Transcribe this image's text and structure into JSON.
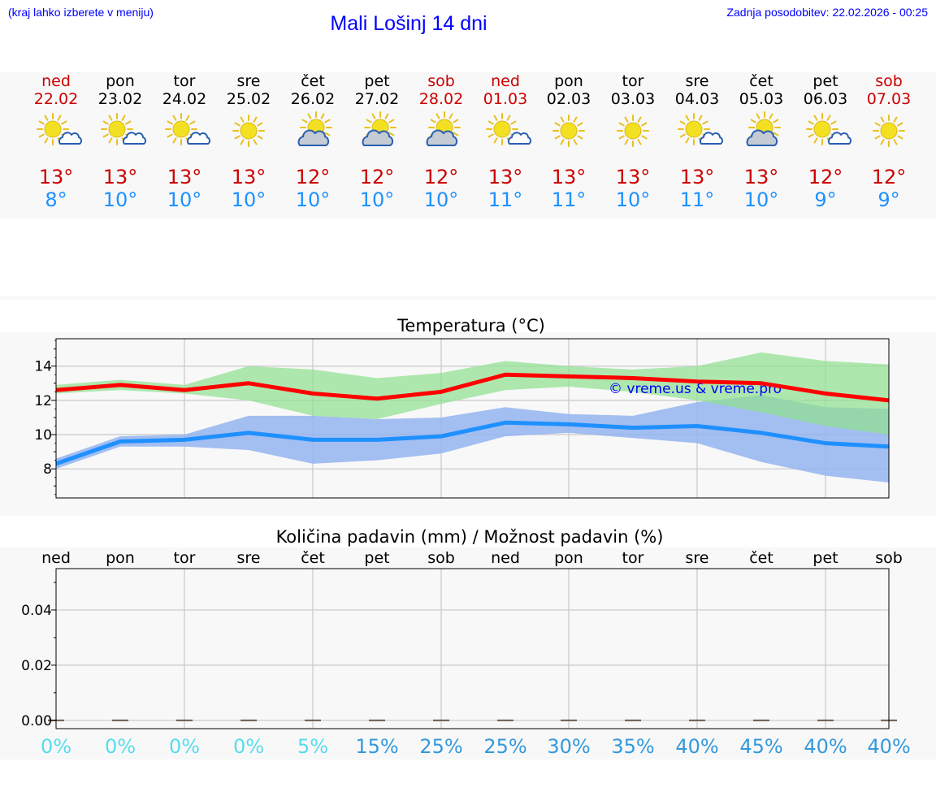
{
  "header": {
    "note": "(kraj lahko izberete v meniju)",
    "title": "Mali Lošinj 14 dni",
    "updated": "Zadnja posodobitev: 22.02.2026 - 00:25"
  },
  "days": [
    {
      "name": "ned",
      "date": "22.02",
      "weekend": true,
      "icon": "sun-cloud-icon",
      "tmax": "13°",
      "tmin": "8°"
    },
    {
      "name": "pon",
      "date": "23.02",
      "weekend": false,
      "icon": "sun-cloud-icon",
      "tmax": "13°",
      "tmin": "10°"
    },
    {
      "name": "tor",
      "date": "24.02",
      "weekend": false,
      "icon": "sun-cloud-icon",
      "tmax": "13°",
      "tmin": "10°"
    },
    {
      "name": "sre",
      "date": "25.02",
      "weekend": false,
      "icon": "sun-icon",
      "tmax": "13°",
      "tmin": "10°"
    },
    {
      "name": "čet",
      "date": "26.02",
      "weekend": false,
      "icon": "cloud-sun-icon",
      "tmax": "12°",
      "tmin": "10°"
    },
    {
      "name": "pet",
      "date": "27.02",
      "weekend": false,
      "icon": "cloud-sun-icon",
      "tmax": "12°",
      "tmin": "10°"
    },
    {
      "name": "sob",
      "date": "28.02",
      "weekend": true,
      "icon": "cloud-sun-icon",
      "tmax": "12°",
      "tmin": "10°"
    },
    {
      "name": "ned",
      "date": "01.03",
      "weekend": true,
      "icon": "sun-cloud-icon",
      "tmax": "13°",
      "tmin": "11°"
    },
    {
      "name": "pon",
      "date": "02.03",
      "weekend": false,
      "icon": "sun-icon",
      "tmax": "13°",
      "tmin": "11°"
    },
    {
      "name": "tor",
      "date": "03.03",
      "weekend": false,
      "icon": "sun-icon",
      "tmax": "13°",
      "tmin": "10°"
    },
    {
      "name": "sre",
      "date": "04.03",
      "weekend": false,
      "icon": "sun-cloud-icon",
      "tmax": "13°",
      "tmin": "11°"
    },
    {
      "name": "čet",
      "date": "05.03",
      "weekend": false,
      "icon": "cloud-sun-icon",
      "tmax": "13°",
      "tmin": "10°"
    },
    {
      "name": "pet",
      "date": "06.03",
      "weekend": false,
      "icon": "sun-cloud-icon",
      "tmax": "12°",
      "tmin": "9°"
    },
    {
      "name": "sob",
      "date": "07.03",
      "weekend": true,
      "icon": "sun-icon",
      "tmax": "12°",
      "tmin": "9°"
    }
  ],
  "colors": {
    "weekend": "#cc0000",
    "tmax_line": "#ff0000",
    "tmin_line": "#1e90ff",
    "tmax_band": "#90e090",
    "tmin_band": "#94b4f0",
    "overlap_band": "#70c0a0",
    "prob_low": "#55ddee",
    "prob_high": "#3399dd",
    "watermark": "#0000ff"
  },
  "chart_data": [
    {
      "type": "line",
      "title": "Temperatura (°C)",
      "xlabel": "",
      "ylabel": "",
      "x": [
        0,
        1,
        2,
        3,
        4,
        5,
        6,
        7,
        8,
        9,
        10,
        11,
        12,
        13
      ],
      "ylim": [
        6.3,
        15.6
      ],
      "yticks": [
        8,
        10,
        12,
        14
      ],
      "grid": true,
      "watermark": "© vreme.us & vreme.pro",
      "series": [
        {
          "name": "max",
          "values": [
            12.6,
            12.9,
            12.6,
            13.0,
            12.4,
            12.1,
            12.5,
            13.5,
            13.4,
            13.3,
            13.1,
            13.0,
            12.4,
            12.0
          ]
        },
        {
          "name": "max_range_low",
          "values": [
            12.4,
            12.6,
            12.4,
            12.0,
            11.1,
            10.9,
            11.8,
            12.6,
            12.8,
            12.5,
            12.0,
            11.3,
            10.5,
            10.0
          ]
        },
        {
          "name": "max_range_high",
          "values": [
            12.9,
            13.2,
            12.9,
            14.0,
            13.8,
            13.3,
            13.6,
            14.3,
            14.0,
            13.8,
            14.0,
            14.8,
            14.3,
            14.1
          ]
        },
        {
          "name": "min",
          "values": [
            8.3,
            9.6,
            9.7,
            10.1,
            9.7,
            9.7,
            9.9,
            10.7,
            10.6,
            10.4,
            10.5,
            10.1,
            9.5,
            9.3
          ]
        },
        {
          "name": "min_range_low",
          "values": [
            8.0,
            9.3,
            9.3,
            9.1,
            8.3,
            8.5,
            8.9,
            9.9,
            10.1,
            9.8,
            9.5,
            8.4,
            7.6,
            7.2
          ]
        },
        {
          "name": "min_range_high",
          "values": [
            8.6,
            9.9,
            10.0,
            11.1,
            11.1,
            10.9,
            11.0,
            11.6,
            11.2,
            11.1,
            11.9,
            12.3,
            11.6,
            11.5
          ]
        }
      ]
    },
    {
      "type": "bar",
      "title": "Količina padavin (mm) / Možnost padavin (%)",
      "xlabel": "",
      "ylabel": "",
      "categories": [
        "ned",
        "pon",
        "tor",
        "sre",
        "čet",
        "pet",
        "sob",
        "ned",
        "pon",
        "tor",
        "sre",
        "čet",
        "pet",
        "sob"
      ],
      "values": [
        0,
        0,
        0,
        0,
        0,
        0,
        0,
        0,
        0,
        0,
        0,
        0,
        0,
        0
      ],
      "ylim": [
        -0.003,
        0.055
      ],
      "yticks": [
        "0.00",
        "0.02",
        "0.04"
      ],
      "ytick_values": [
        0,
        0.02,
        0.04
      ],
      "grid": true,
      "probability": [
        "0%",
        "0%",
        "0%",
        "0%",
        "5%",
        "15%",
        "25%",
        "25%",
        "30%",
        "35%",
        "40%",
        "45%",
        "40%",
        "40%"
      ],
      "probability_values": [
        0,
        0,
        0,
        0,
        5,
        15,
        25,
        25,
        30,
        35,
        40,
        45,
        40,
        40
      ]
    }
  ]
}
